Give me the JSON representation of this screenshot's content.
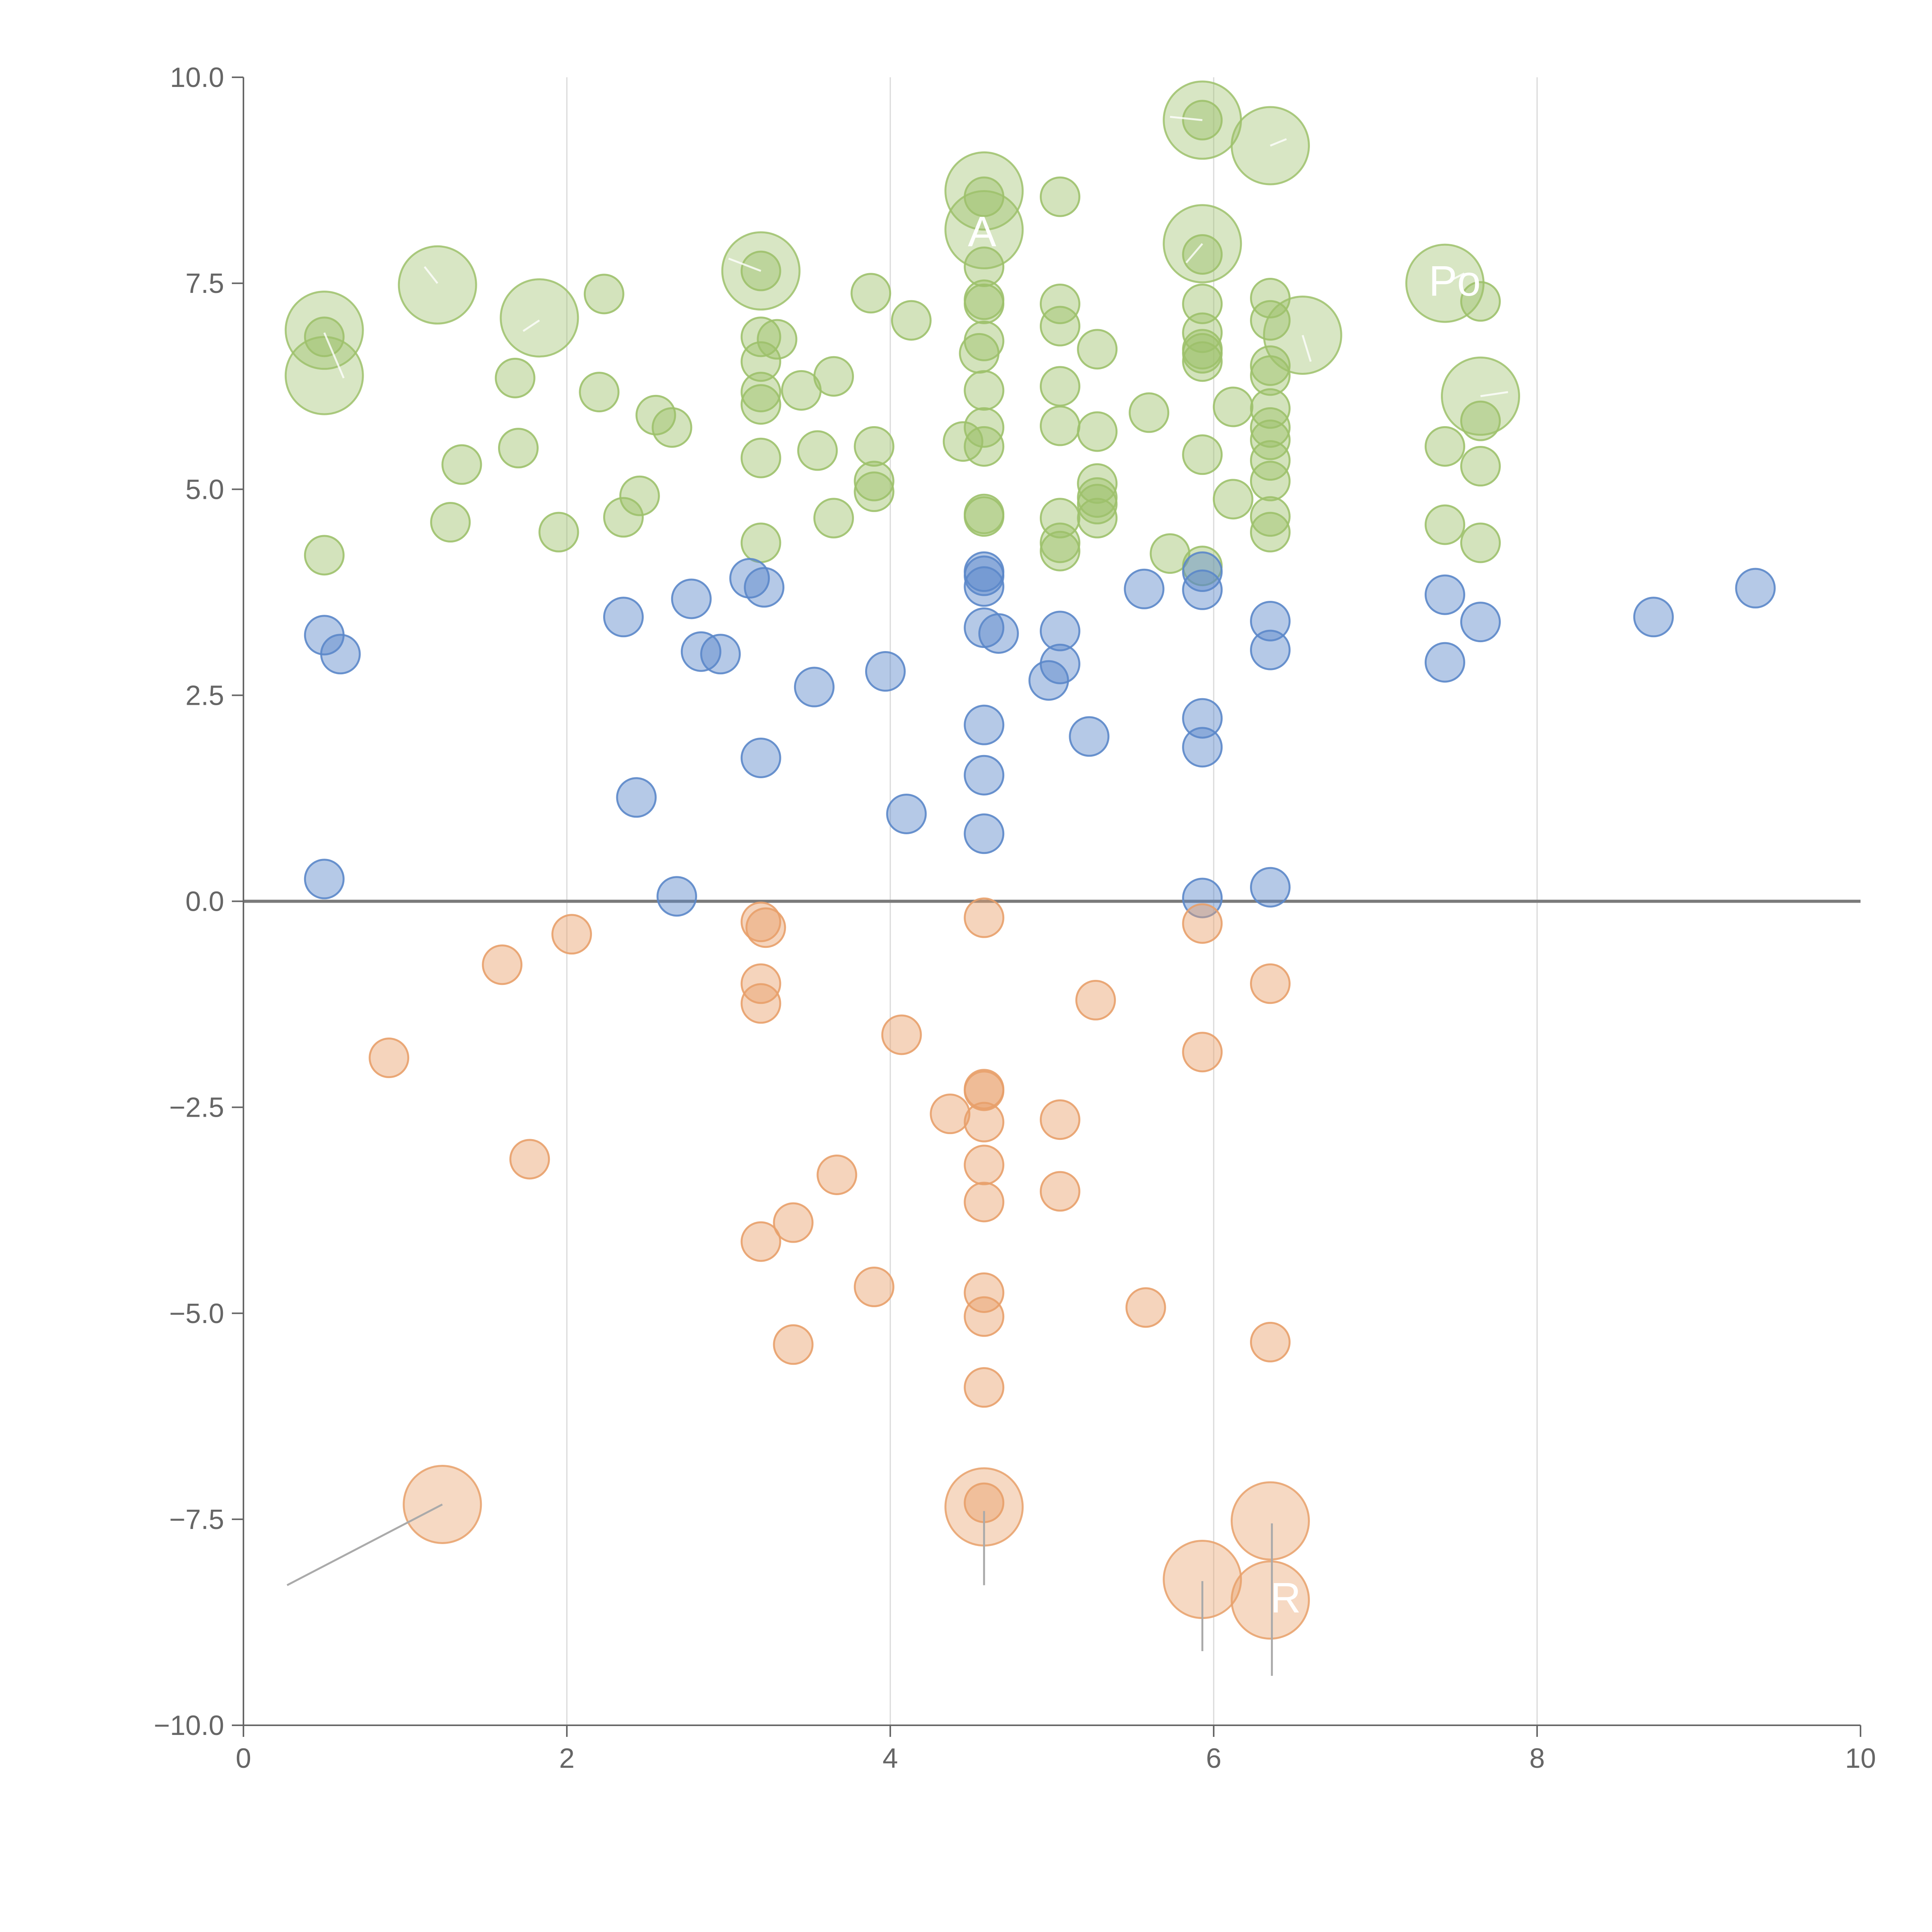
{
  "chart_data": {
    "type": "scatter",
    "title": "",
    "xlabel": "",
    "ylabel": "",
    "xlim": [
      0,
      10
    ],
    "ylim": [
      -10,
      10
    ],
    "x_ticks": [
      "0",
      "2",
      "4",
      "6",
      "8",
      "10"
    ],
    "y_ticks": [
      "−10.0",
      "−7.5",
      "−5.0",
      "−2.5",
      "0.0",
      "2.5",
      "5.0",
      "7.5",
      "10.0"
    ],
    "x_tick_values": [
      0,
      2,
      4,
      6,
      8,
      10
    ],
    "y_tick_values": [
      -10,
      -7.5,
      -5,
      -2.5,
      0,
      2.5,
      5,
      7.5,
      10
    ],
    "vertical_grid": [
      2,
      4,
      6,
      8
    ],
    "zero_line": 0,
    "colors": {
      "green": "#9dc16b",
      "blue": "#5b87c9",
      "orange": "#e8a06a",
      "axis": "#666666",
      "grid": "#d9d9d9",
      "zero": "#7a7a7a",
      "leader": "#aaaaaa",
      "label": "#ffffff"
    },
    "series": [
      {
        "name": "green",
        "color": "#9dc16b",
        "points": [
          [
            0.5,
            4.2
          ],
          [
            0.5,
            6.85
          ],
          [
            1.28,
            4.6
          ],
          [
            1.35,
            5.3
          ],
          [
            1.68,
            6.35
          ],
          [
            1.7,
            5.5
          ],
          [
            1.95,
            4.48
          ],
          [
            2.2,
            6.18
          ],
          [
            2.23,
            7.37
          ],
          [
            2.35,
            4.66
          ],
          [
            2.45,
            4.92
          ],
          [
            2.55,
            5.9
          ],
          [
            2.65,
            5.75
          ],
          [
            3.2,
            4.35
          ],
          [
            3.2,
            5.38
          ],
          [
            3.2,
            6.03
          ],
          [
            3.2,
            6.18
          ],
          [
            3.2,
            6.55
          ],
          [
            3.2,
            6.85
          ],
          [
            3.2,
            7.65
          ],
          [
            3.3,
            6.82
          ],
          [
            3.45,
            6.2
          ],
          [
            3.55,
            5.47
          ],
          [
            3.65,
            4.65
          ],
          [
            3.65,
            6.37
          ],
          [
            3.88,
            7.38
          ],
          [
            3.9,
            5.52
          ],
          [
            3.9,
            5.1
          ],
          [
            3.9,
            4.97
          ],
          [
            4.13,
            7.05
          ],
          [
            4.45,
            5.58
          ],
          [
            4.55,
            6.65
          ],
          [
            4.58,
            4.67
          ],
          [
            4.58,
            4.7
          ],
          [
            4.58,
            5.52
          ],
          [
            4.58,
            5.75
          ],
          [
            4.58,
            6.2
          ],
          [
            4.58,
            6.8
          ],
          [
            4.58,
            7.25
          ],
          [
            4.58,
            7.3
          ],
          [
            4.58,
            7.7
          ],
          [
            4.58,
            8.55
          ],
          [
            5.05,
            4.25
          ],
          [
            5.05,
            4.35
          ],
          [
            5.05,
            4.65
          ],
          [
            5.05,
            5.77
          ],
          [
            5.05,
            6.25
          ],
          [
            5.05,
            6.98
          ],
          [
            5.05,
            7.25
          ],
          [
            5.05,
            8.55
          ],
          [
            5.28,
            4.65
          ],
          [
            5.28,
            4.82
          ],
          [
            5.28,
            4.9
          ],
          [
            5.28,
            5.07
          ],
          [
            5.28,
            5.7
          ],
          [
            5.28,
            6.7
          ],
          [
            5.6,
            5.93
          ],
          [
            5.73,
            4.22
          ],
          [
            5.93,
            4.07
          ],
          [
            5.93,
            5.42
          ],
          [
            5.93,
            6.55
          ],
          [
            5.93,
            6.65
          ],
          [
            5.93,
            6.7
          ],
          [
            5.93,
            6.9
          ],
          [
            5.93,
            7.25
          ],
          [
            5.93,
            7.85
          ],
          [
            5.93,
            9.48
          ],
          [
            6.12,
            4.88
          ],
          [
            6.12,
            6.0
          ],
          [
            6.35,
            4.48
          ],
          [
            6.35,
            4.67
          ],
          [
            6.35,
            5.1
          ],
          [
            6.35,
            5.35
          ],
          [
            6.35,
            5.6
          ],
          [
            6.35,
            5.75
          ],
          [
            6.35,
            5.98
          ],
          [
            6.35,
            6.38
          ],
          [
            6.35,
            6.5
          ],
          [
            6.35,
            7.05
          ],
          [
            6.35,
            7.32
          ],
          [
            7.43,
            4.57
          ],
          [
            7.43,
            5.52
          ],
          [
            7.65,
            4.35
          ],
          [
            7.65,
            5.28
          ],
          [
            7.65,
            5.83
          ],
          [
            7.65,
            7.28
          ]
        ]
      },
      {
        "name": "blue",
        "color": "#5b87c9",
        "points": [
          [
            0.5,
            3.23
          ],
          [
            0.5,
            0.27
          ],
          [
            0.6,
            3.0
          ],
          [
            2.35,
            3.45
          ],
          [
            2.43,
            1.26
          ],
          [
            2.68,
            0.06
          ],
          [
            2.77,
            3.67
          ],
          [
            2.83,
            3.03
          ],
          [
            2.95,
            3.0
          ],
          [
            3.13,
            3.92
          ],
          [
            3.2,
            1.74
          ],
          [
            3.22,
            3.81
          ],
          [
            3.53,
            2.6
          ],
          [
            3.97,
            2.79
          ],
          [
            4.1,
            1.06
          ],
          [
            4.58,
            3.95
          ],
          [
            4.58,
            4.0
          ],
          [
            4.58,
            3.82
          ],
          [
            4.58,
            3.32
          ],
          [
            4.58,
            2.14
          ],
          [
            4.58,
            1.53
          ],
          [
            4.58,
            0.82
          ],
          [
            4.67,
            3.25
          ],
          [
            4.98,
            2.68
          ],
          [
            5.05,
            3.28
          ],
          [
            5.05,
            2.88
          ],
          [
            5.23,
            2.0
          ],
          [
            5.57,
            3.79
          ],
          [
            5.93,
            4.0
          ],
          [
            5.93,
            3.78
          ],
          [
            5.93,
            2.22
          ],
          [
            5.93,
            1.87
          ],
          [
            5.93,
            0.04
          ],
          [
            6.35,
            3.4
          ],
          [
            6.35,
            3.05
          ],
          [
            6.35,
            0.17
          ],
          [
            7.43,
            3.72
          ],
          [
            7.43,
            2.9
          ],
          [
            7.65,
            3.39
          ],
          [
            8.72,
            3.45
          ],
          [
            9.35,
            3.8
          ]
        ]
      },
      {
        "name": "orange",
        "color": "#e8a06a",
        "points": [
          [
            0.9,
            -1.9
          ],
          [
            1.6,
            -0.77
          ],
          [
            1.77,
            -3.13
          ],
          [
            2.03,
            -0.4
          ],
          [
            3.2,
            -0.25
          ],
          [
            3.2,
            -1.0
          ],
          [
            3.2,
            -1.24
          ],
          [
            3.2,
            -4.13
          ],
          [
            3.23,
            -0.32
          ],
          [
            3.4,
            -3.9
          ],
          [
            3.4,
            -5.38
          ],
          [
            3.67,
            -3.32
          ],
          [
            3.9,
            -4.68
          ],
          [
            4.07,
            -1.62
          ],
          [
            4.37,
            -2.58
          ],
          [
            4.58,
            -0.2
          ],
          [
            4.58,
            -2.28
          ],
          [
            4.58,
            -2.3
          ],
          [
            4.58,
            -2.68
          ],
          [
            4.58,
            -3.2
          ],
          [
            4.58,
            -3.65
          ],
          [
            4.58,
            -4.75
          ],
          [
            4.58,
            -5.04
          ],
          [
            4.58,
            -5.9
          ],
          [
            4.58,
            -7.3
          ],
          [
            5.05,
            -2.65
          ],
          [
            5.05,
            -3.52
          ],
          [
            5.27,
            -1.2
          ],
          [
            5.58,
            -4.93
          ],
          [
            5.93,
            -0.27
          ],
          [
            5.93,
            -1.83
          ],
          [
            6.35,
            -1.0
          ],
          [
            6.35,
            -5.35
          ]
        ]
      }
    ],
    "highlighted_points": [
      {
        "series": "green",
        "x": 0.5,
        "y": 6.93
      },
      {
        "series": "green",
        "x": 0.5,
        "y": 6.38
      },
      {
        "series": "green",
        "x": 1.2,
        "y": 7.48
      },
      {
        "series": "green",
        "x": 1.83,
        "y": 7.08
      },
      {
        "series": "green",
        "x": 3.2,
        "y": 7.65
      },
      {
        "series": "green",
        "x": 4.58,
        "y": 8.62
      },
      {
        "series": "green",
        "x": 4.58,
        "y": 8.15
      },
      {
        "series": "green",
        "x": 5.93,
        "y": 9.48
      },
      {
        "series": "green",
        "x": 5.93,
        "y": 7.98
      },
      {
        "series": "green",
        "x": 6.35,
        "y": 9.17
      },
      {
        "series": "green",
        "x": 6.55,
        "y": 6.87
      },
      {
        "series": "green",
        "x": 7.43,
        "y": 7.5
      },
      {
        "series": "green",
        "x": 7.65,
        "y": 6.13
      },
      {
        "series": "orange",
        "x": 1.23,
        "y": -7.32
      },
      {
        "series": "orange",
        "x": 4.58,
        "y": -7.35
      },
      {
        "series": "orange",
        "x": 5.93,
        "y": -8.23
      },
      {
        "series": "orange",
        "x": 6.35,
        "y": -7.52
      },
      {
        "series": "orange",
        "x": 6.35,
        "y": -8.48
      }
    ],
    "annotations": [
      {
        "text": "A",
        "x": 4.58,
        "y": 8.15
      },
      {
        "text": "Po",
        "x": 7.43,
        "y": 7.5
      },
      {
        "text": "R",
        "x": 6.35,
        "y": -8.48
      }
    ]
  }
}
